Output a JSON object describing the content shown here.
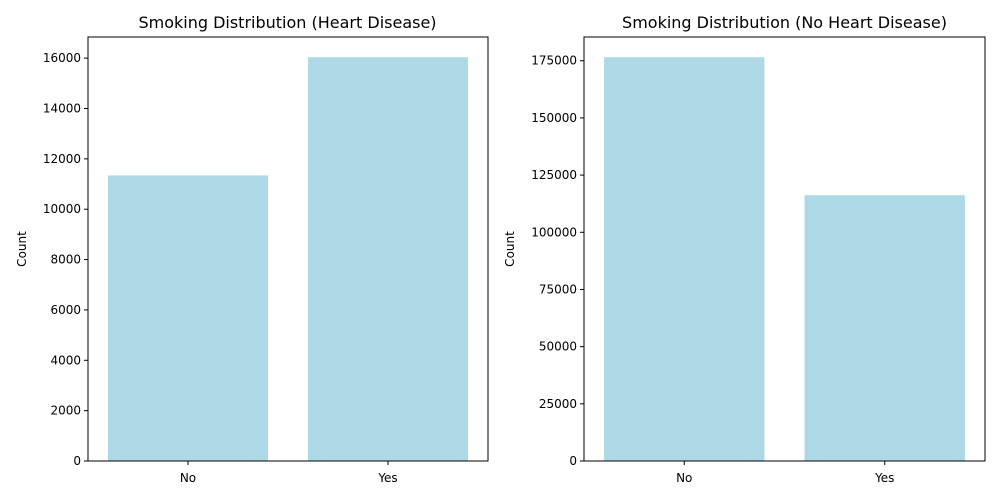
{
  "chart_data": [
    {
      "type": "bar",
      "title": "Smoking Distribution (Heart Disease)",
      "xlabel": "",
      "ylabel": "Count",
      "categories": [
        "No",
        "Yes"
      ],
      "values": [
        11342,
        16037
      ],
      "ylim": [
        0,
        16840
      ],
      "yticks": [
        0,
        2000,
        4000,
        6000,
        8000,
        10000,
        12000,
        14000,
        16000
      ],
      "bar_color": "#add8e6",
      "grid": false
    },
    {
      "type": "bar",
      "title": "Smoking Distribution (No Heart Disease)",
      "xlabel": "",
      "ylabel": "Count",
      "categories": [
        "No",
        "Yes"
      ],
      "values": [
        176551,
        116222
      ],
      "ylim": [
        0,
        185380
      ],
      "yticks": [
        0,
        25000,
        50000,
        75000,
        100000,
        125000,
        150000,
        175000
      ],
      "bar_color": "#add8e6",
      "grid": false
    }
  ]
}
